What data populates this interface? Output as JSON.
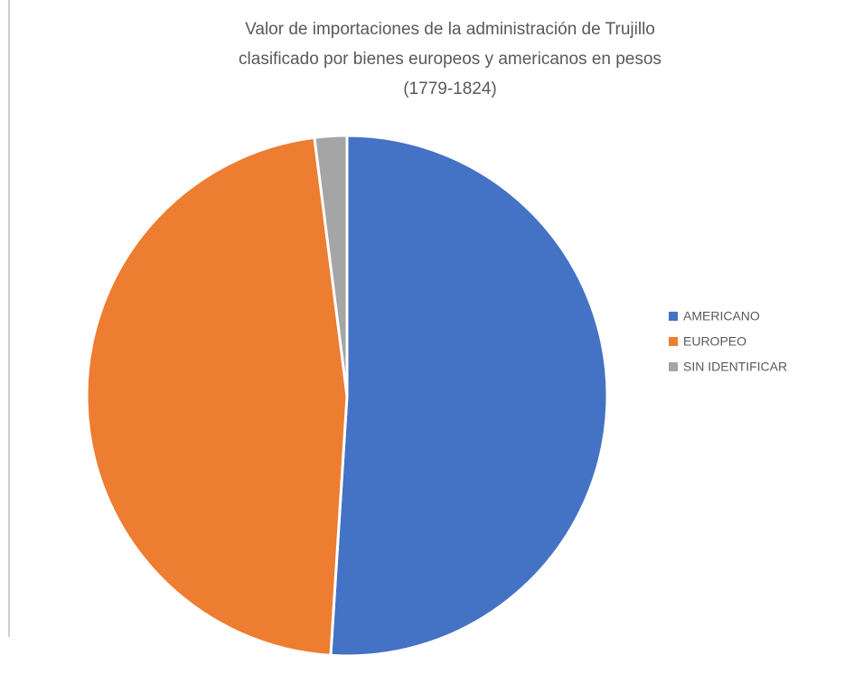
{
  "chart_data": {
    "type": "pie",
    "title": "Valor de importaciones de la administración de Trujillo clasificado por bienes europeos y americanos en pesos (1779-1824)",
    "categories": [
      "AMERICANO",
      "EUROPEO",
      "SIN IDENTIFICAR"
    ],
    "values": [
      51,
      47,
      2
    ],
    "colors": [
      "#4472c4",
      "#ed7d31",
      "#a5a5a5"
    ],
    "legend": "right"
  }
}
